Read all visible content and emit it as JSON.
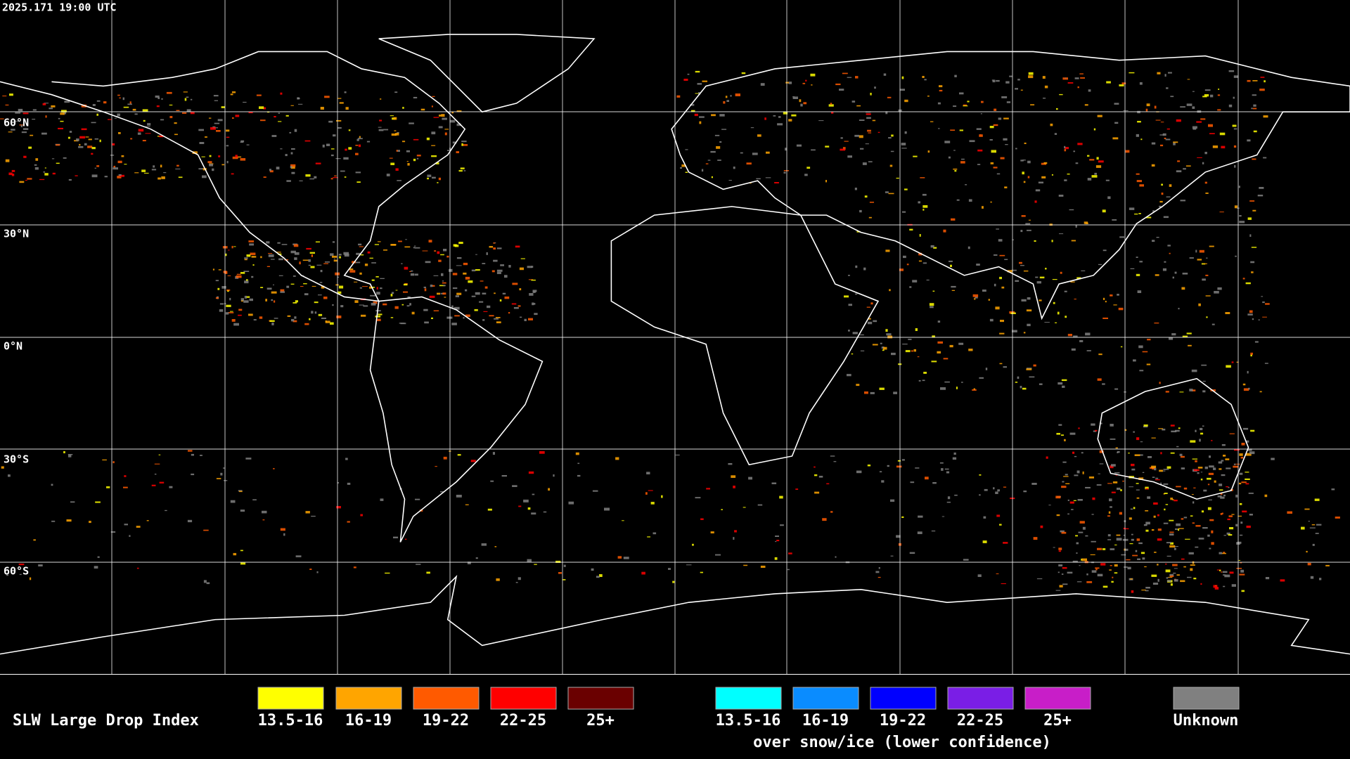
{
  "timestamp": "2025.171 19:00 UTC",
  "latitude_labels": [
    "60°N",
    "30°N",
    "0°N",
    "30°S",
    "60°S"
  ],
  "legend": {
    "title": "SLW Large Drop Index",
    "items": [
      {
        "label": "13.5-16",
        "color": "#ffff00"
      },
      {
        "label": "16-19",
        "color": "#ffa500"
      },
      {
        "label": "19-22",
        "color": "#ff5a00"
      },
      {
        "label": "22-25",
        "color": "#ff0000"
      },
      {
        "label": "25+",
        "color": "#6a0000"
      }
    ],
    "snow_items": [
      {
        "label": "13.5-16",
        "color": "#00ffff"
      },
      {
        "label": "16-19",
        "color": "#0a8cff"
      },
      {
        "label": "19-22",
        "color": "#0000ff"
      },
      {
        "label": "22-25",
        "color": "#7a1ee6"
      },
      {
        "label": "25+",
        "color": "#c81ec8"
      }
    ],
    "snow_note": "over snow/ice (lower confidence)",
    "unknown": {
      "label": "Unknown",
      "color": "#808080"
    }
  }
}
